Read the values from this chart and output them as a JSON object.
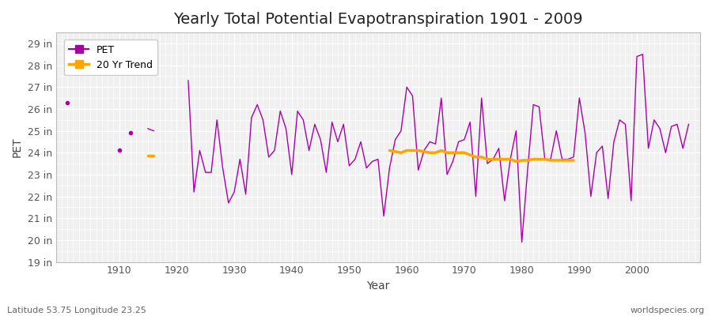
{
  "title": "Yearly Total Potential Evapotranspiration 1901 - 2009",
  "xlabel": "Year",
  "ylabel": "PET",
  "footnote_left": "Latitude 53.75 Longitude 23.25",
  "footnote_right": "worldspecies.org",
  "pet_color": "#AA00AA",
  "trend_color": "#FFA500",
  "fig_bg": "#FFFFFF",
  "plot_bg": "#F0F0F0",
  "grid_color": "#FFFFFF",
  "ylim_min": 19,
  "ylim_max": 29.5,
  "xlim_min": 1899,
  "xlim_max": 2011,
  "ytick_labels": [
    "19 in",
    "20 in",
    "21 in",
    "22 in",
    "23 in",
    "24 in",
    "25 in",
    "26 in",
    "27 in",
    "28 in",
    "29 in"
  ],
  "ytick_values": [
    19,
    20,
    21,
    22,
    23,
    24,
    25,
    26,
    27,
    28,
    29
  ],
  "xtick_values": [
    1910,
    1920,
    1930,
    1940,
    1950,
    1960,
    1970,
    1980,
    1990,
    2000
  ],
  "years": [
    1901,
    1902,
    1903,
    1904,
    1905,
    1906,
    1907,
    1908,
    1909,
    1910,
    1911,
    1912,
    1913,
    1914,
    1915,
    1916,
    1917,
    1918,
    1919,
    1920,
    1921,
    1922,
    1923,
    1924,
    1925,
    1926,
    1927,
    1928,
    1929,
    1930,
    1931,
    1932,
    1933,
    1934,
    1935,
    1936,
    1937,
    1938,
    1939,
    1940,
    1941,
    1942,
    1943,
    1944,
    1945,
    1946,
    1947,
    1948,
    1949,
    1950,
    1951,
    1952,
    1953,
    1954,
    1955,
    1956,
    1957,
    1958,
    1959,
    1960,
    1961,
    1962,
    1963,
    1964,
    1965,
    1966,
    1967,
    1968,
    1969,
    1970,
    1971,
    1972,
    1973,
    1974,
    1975,
    1976,
    1977,
    1978,
    1979,
    1980,
    1981,
    1982,
    1983,
    1984,
    1985,
    1986,
    1987,
    1988,
    1989,
    1990,
    1991,
    1992,
    1993,
    1994,
    1995,
    1996,
    1997,
    1998,
    1999,
    2000,
    2001,
    2002,
    2003,
    2004,
    2005,
    2006,
    2007,
    2008,
    2009
  ],
  "pet": [
    26.3,
    null,
    null,
    null,
    null,
    null,
    null,
    null,
    null,
    24.1,
    null,
    24.9,
    null,
    null,
    25.1,
    25.0,
    null,
    null,
    null,
    null,
    null,
    27.3,
    22.2,
    24.1,
    23.1,
    23.1,
    25.5,
    23.3,
    21.7,
    22.2,
    23.7,
    22.1,
    25.6,
    26.2,
    25.5,
    23.8,
    24.1,
    25.9,
    25.1,
    23.0,
    25.9,
    25.5,
    24.1,
    25.3,
    24.6,
    23.1,
    25.4,
    24.5,
    25.3,
    23.4,
    23.7,
    24.5,
    23.3,
    23.6,
    23.7,
    21.1,
    23.3,
    24.6,
    25.0,
    27.0,
    26.6,
    23.2,
    24.1,
    24.5,
    24.4,
    26.5,
    23.0,
    23.6,
    24.5,
    24.6,
    25.4,
    22.0,
    26.5,
    23.5,
    23.7,
    24.2,
    21.8,
    23.7,
    25.0,
    19.9,
    23.2,
    26.2,
    26.1,
    23.7,
    23.7,
    25.0,
    23.7,
    23.7,
    23.8,
    26.5,
    24.9,
    22.0,
    24.0,
    24.3,
    21.9,
    24.5,
    25.5,
    25.3,
    21.8,
    28.4,
    28.5,
    24.2,
    25.5,
    25.1,
    24.0,
    25.2,
    25.3,
    24.2,
    25.3
  ],
  "pet_isolated": [
    [
      1901,
      26.3
    ],
    [
      1910,
      24.1
    ],
    [
      1912,
      24.9
    ],
    [
      1929,
      21.7
    ]
  ],
  "trend_segments": [
    {
      "years": [
        1915,
        1916
      ],
      "values": [
        23.85,
        23.85
      ]
    },
    {
      "years": [
        1957,
        1958,
        1959,
        1960,
        1961,
        1962,
        1963,
        1964,
        1965,
        1966,
        1967,
        1968,
        1969,
        1970,
        1971,
        1972,
        1973,
        1974,
        1975,
        1976,
        1977,
        1978,
        1979,
        1980,
        1981,
        1982,
        1983,
        1984,
        1985,
        1986,
        1987,
        1988,
        1989
      ],
      "values": [
        24.1,
        24.05,
        24.0,
        24.1,
        24.1,
        24.1,
        24.05,
        24.0,
        24.0,
        24.1,
        24.0,
        24.0,
        24.0,
        24.0,
        23.9,
        23.8,
        23.8,
        23.7,
        23.7,
        23.7,
        23.7,
        23.7,
        23.6,
        23.65,
        23.65,
        23.7,
        23.7,
        23.7,
        23.65,
        23.65,
        23.65,
        23.65,
        23.65
      ]
    }
  ],
  "title_fontsize": 14,
  "label_fontsize": 10,
  "tick_fontsize": 9,
  "legend_fontsize": 9
}
